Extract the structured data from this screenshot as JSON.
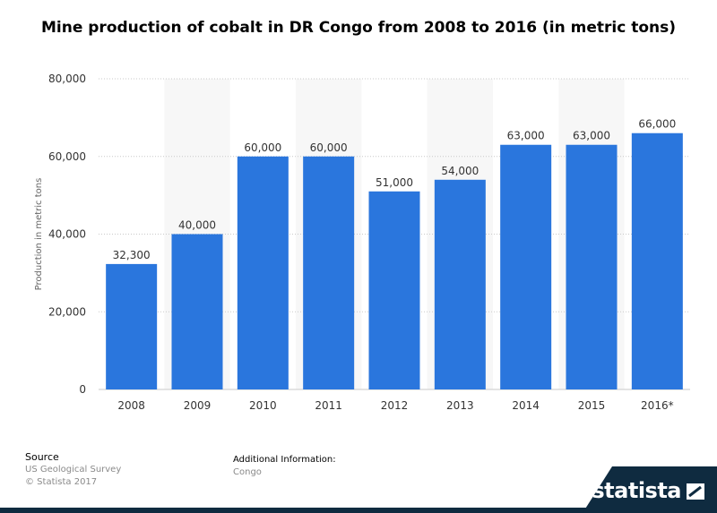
{
  "chart_data": {
    "type": "bar",
    "title": "Mine production of cobalt in DR Congo from 2008 to 2016 (in metric tons)",
    "xlabel": "",
    "ylabel": "Production in metric tons",
    "categories": [
      "2008",
      "2009",
      "2010",
      "2011",
      "2012",
      "2013",
      "2014",
      "2015",
      "2016*"
    ],
    "values": [
      32300,
      40000,
      60000,
      60000,
      51000,
      54000,
      63000,
      63000,
      66000
    ],
    "value_labels": [
      "32,300",
      "40,000",
      "60,000",
      "60,000",
      "51,000",
      "54,000",
      "63,000",
      "63,000",
      "66,000"
    ],
    "ylim": [
      0,
      80000
    ],
    "yticks": [
      0,
      20000,
      40000,
      60000,
      80000
    ],
    "ytick_labels": [
      "0",
      "20,000",
      "40,000",
      "60,000",
      "80,000"
    ],
    "grid": true,
    "bar_color": "#2a76dd"
  },
  "footer": {
    "source_heading": "Source",
    "source_line1": "US Geological Survey",
    "source_line2": "© Statista 2017",
    "info_heading": "Additional Information:",
    "info_line1": "Congo"
  },
  "brand": {
    "name": "statista",
    "color": "#0f2b40"
  }
}
